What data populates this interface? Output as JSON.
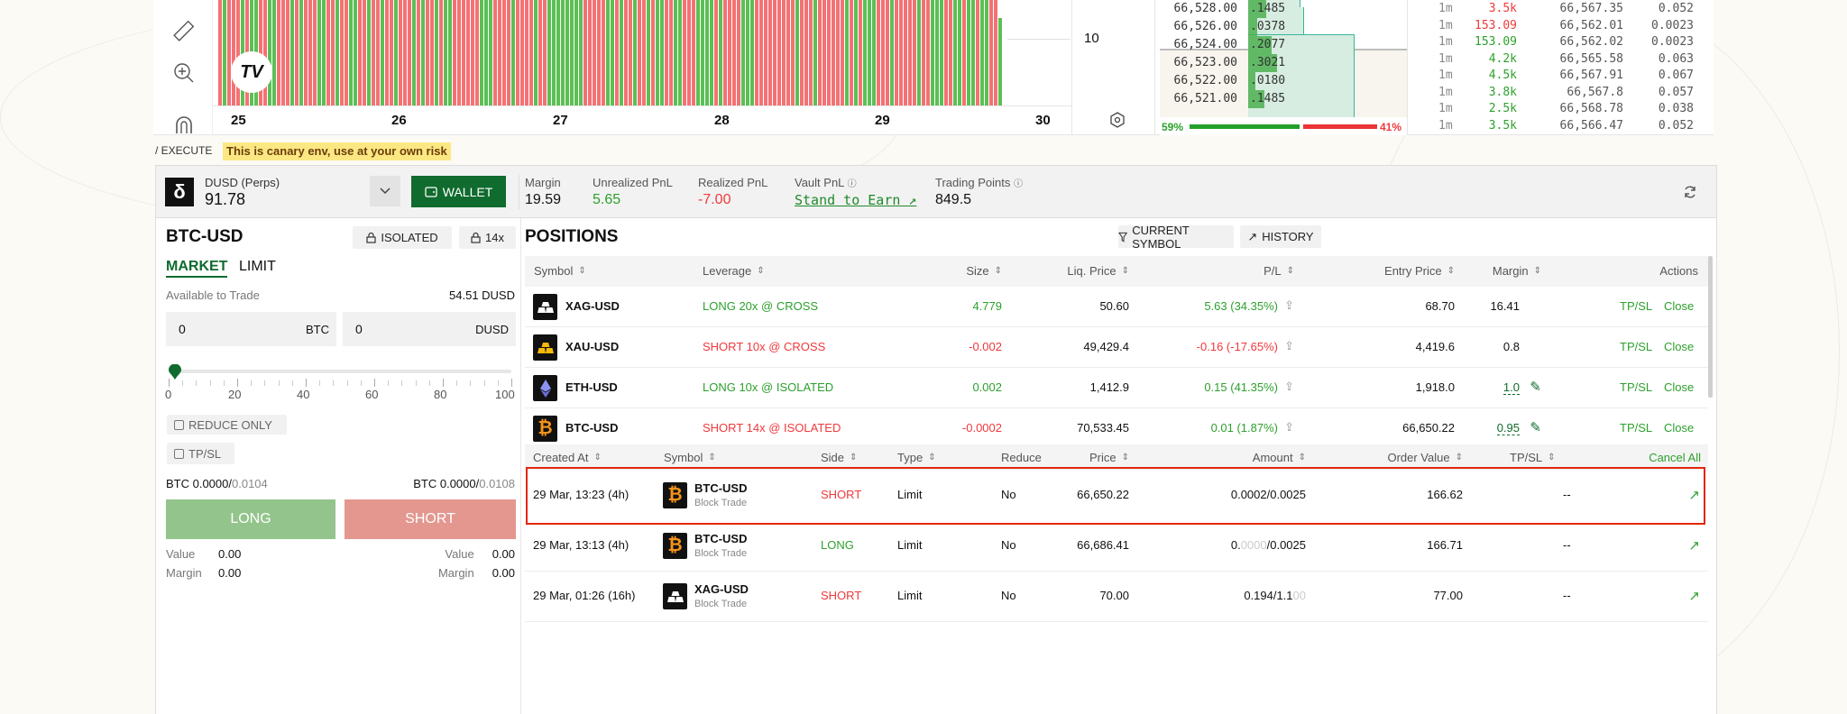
{
  "chart": {
    "date_labels": [
      "25",
      "26",
      "27",
      "28",
      "29",
      "30"
    ],
    "price_label": "10"
  },
  "orderbook": {
    "rows": [
      {
        "price": "66,528.00",
        "size": ".1485"
      },
      {
        "price": "66,526.00",
        "size": ".0378"
      },
      {
        "price": "66,524.00",
        "size": ".2077"
      },
      {
        "price": "66,523.00",
        "size": ".3021"
      },
      {
        "price": "66,522.00",
        "size": ".0180"
      },
      {
        "price": "66,521.00",
        "size": ".1485"
      }
    ],
    "buy_pct": "59%",
    "sell_pct": "41%",
    "buy_fraction": 0.59
  },
  "trades": [
    {
      "age": "1m",
      "size": "3.5k",
      "price": "66,567.35",
      "amount": "0.052",
      "side": "sell"
    },
    {
      "age": "1m",
      "size": "153.09",
      "price": "66,562.01",
      "amount": "0.0023",
      "side": "sell"
    },
    {
      "age": "1m",
      "size": "153.09",
      "price": "66,562.02",
      "amount": "0.0023",
      "side": "buy"
    },
    {
      "age": "1m",
      "size": "4.2k",
      "price": "66,565.58",
      "amount": "0.063",
      "side": "buy"
    },
    {
      "age": "1m",
      "size": "4.5k",
      "price": "66,567.91",
      "amount": "0.067",
      "side": "buy"
    },
    {
      "age": "1m",
      "size": "3.8k",
      "price": "66,567.8",
      "amount": "0.057",
      "side": "buy"
    },
    {
      "age": "1m",
      "size": "2.5k",
      "price": "66,568.78",
      "amount": "0.038",
      "side": "buy"
    },
    {
      "age": "1m",
      "size": "3.5k",
      "price": "66,566.47",
      "amount": "0.052",
      "side": "buy"
    }
  ],
  "breadcrumb": "/ EXECUTE",
  "canary_warning": "This is canary env, use at your own risk",
  "account": {
    "name": "DUSD (Perps)",
    "balance": "91.78",
    "wallet_label": "WALLET",
    "margin_label": "Margin",
    "margin": "19.59",
    "unrealized_label": "Unrealized PnL",
    "unrealized": "5.65",
    "realized_label": "Realized PnL",
    "realized": "-7.00",
    "vault_label": "Vault PnL",
    "vault_link": "Stand to Earn",
    "points_label": "Trading Points",
    "points": "849.5"
  },
  "order_form": {
    "symbol": "BTC-USD",
    "margin_mode": "ISOLATED",
    "leverage": "14x",
    "tab_market": "MARKET",
    "tab_limit": "LIMIT",
    "available_label": "Available to Trade",
    "available": "54.51 DUSD",
    "qty_value": "0",
    "qty_unit": "BTC",
    "cost_value": "0",
    "cost_unit": "DUSD",
    "slider_value": 0,
    "slider_ticks": [
      "0",
      "20",
      "40",
      "60",
      "80",
      "100"
    ],
    "reduce_only": "REDUCE ONLY",
    "tpsl": "TP/SL",
    "long_cap_a": "BTC 0.0000/",
    "long_cap_b": "0.0104",
    "short_cap_a": "BTC 0.0000/",
    "short_cap_b": "0.0108",
    "long_label": "LONG",
    "short_label": "SHORT",
    "value_label": "Value",
    "margin_label": "Margin",
    "long_value": "0.00",
    "long_margin": "0.00",
    "short_value": "0.00",
    "short_margin": "0.00"
  },
  "positions": {
    "title": "POSITIONS",
    "filter_label": "CURRENT SYMBOL",
    "history_label": "HISTORY",
    "headers": [
      "Symbol",
      "Leverage",
      "Size",
      "Liq. Price",
      "P/L",
      "Entry Price",
      "Margin",
      "Actions"
    ],
    "tpsl_label": "TP/SL",
    "close_label": "Close",
    "rows": [
      {
        "symbol": "XAG-USD",
        "coin": "silver",
        "leverage": "LONG 20x @ CROSS",
        "side": "long",
        "size": "4.779",
        "liq": "50.60",
        "pl": "5.63 (34.35%)",
        "pl_pos": true,
        "entry": "68.70",
        "margin": "16.41",
        "editable": false
      },
      {
        "symbol": "XAU-USD",
        "coin": "gold",
        "leverage": "SHORT 10x @ CROSS",
        "side": "short",
        "size": "-0.002",
        "liq": "49,429.4",
        "pl": "-0.16 (-17.65%)",
        "pl_pos": false,
        "entry": "4,419.6",
        "margin": "0.8",
        "editable": false
      },
      {
        "symbol": "ETH-USD",
        "coin": "eth",
        "leverage": "LONG 10x @ ISOLATED",
        "side": "long",
        "size": "0.002",
        "liq": "1,412.9",
        "pl": "0.15 (41.35%)",
        "pl_pos": true,
        "entry": "1,918.0",
        "margin": "1.0",
        "editable": true
      },
      {
        "symbol": "BTC-USD",
        "coin": "btc",
        "leverage": "SHORT 14x @ ISOLATED",
        "side": "short",
        "size": "-0.0002",
        "liq": "70,533.45",
        "pl": "0.01 (1.87%)",
        "pl_pos": true,
        "entry": "66,650.22",
        "margin": "0.95",
        "editable": true
      }
    ]
  },
  "orders": {
    "headers": [
      "Created At",
      "Symbol",
      "Side",
      "Type",
      "Reduce",
      "Price",
      "Amount",
      "Order Value",
      "TP/SL"
    ],
    "cancel_all": "Cancel All",
    "rows": [
      {
        "created": "29 Mar, 13:23 (4h)",
        "symbol": "BTC-USD",
        "coin": "btc",
        "sub": "Block Trade",
        "side": "SHORT",
        "type": "Limit",
        "reduce": "No",
        "price": "66,650.22",
        "amount_a": "0.0002/0.0025",
        "amount_b": "",
        "value": "166.62",
        "tpsl": "--",
        "highlight": true
      },
      {
        "created": "29 Mar, 13:13 (4h)",
        "symbol": "BTC-USD",
        "coin": "btc",
        "sub": "Block Trade",
        "side": "LONG",
        "type": "Limit",
        "reduce": "No",
        "price": "66,686.41",
        "amount_a": "0.",
        "amount_faint": "0000",
        "amount_b": "/0.0025",
        "value": "166.71",
        "tpsl": "--",
        "highlight": false
      },
      {
        "created": "29 Mar, 01:26 (16h)",
        "symbol": "XAG-USD",
        "coin": "silver",
        "sub": "Block Trade",
        "side": "SHORT",
        "type": "Limit",
        "reduce": "No",
        "price": "70.00",
        "amount_a": "0.194/1.1",
        "amount_faint": "00",
        "amount_b": "",
        "value": "77.00",
        "tpsl": "--",
        "highlight": false
      }
    ]
  },
  "colors": {
    "green": "#2ea02e",
    "red": "#f0393c",
    "wallet": "#0f6b2e",
    "long_btn": "#93c48b",
    "short_btn": "#e3978f"
  }
}
